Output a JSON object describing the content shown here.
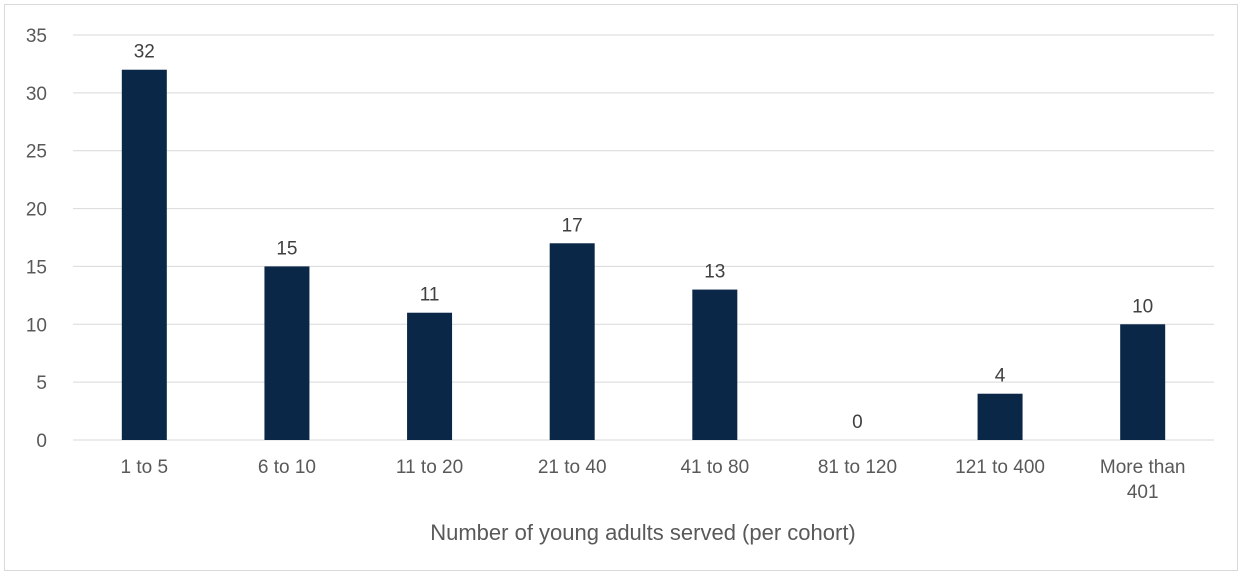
{
  "chart_data": {
    "type": "bar",
    "categories": [
      "1 to 5",
      "6 to 10",
      "11 to 20",
      "21 to 40",
      "41 to 80",
      "81 to 120",
      "121 to 400",
      "More than 401"
    ],
    "values": [
      32,
      15,
      11,
      17,
      13,
      0,
      4,
      10
    ],
    "xlabel": "Number of young adults served (per cohort)",
    "ylabel": "",
    "ylim": [
      0,
      35
    ],
    "yticks": [
      0,
      5,
      10,
      15,
      20,
      25,
      30,
      35
    ],
    "grid": true,
    "bar_color": "#0b2747",
    "grid_color": "#d9d9d9"
  }
}
